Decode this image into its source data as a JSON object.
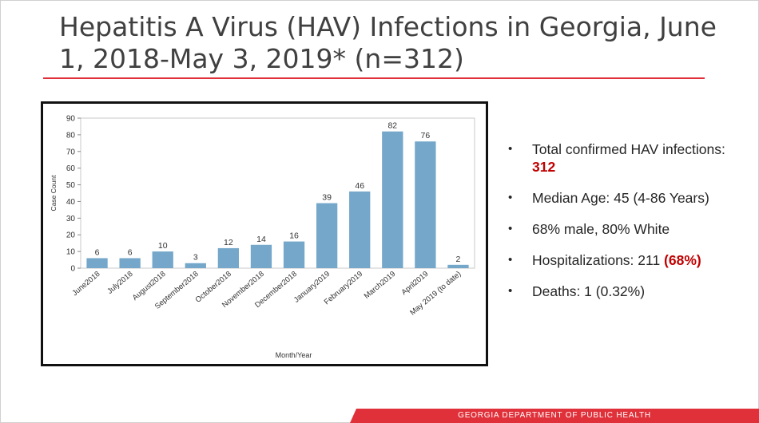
{
  "slide": {
    "title": "Hepatitis A Virus (HAV) Infections in Georgia, June 1, 2018-May 3, 2019* (n=312)",
    "footer": "GEORGIA DEPARTMENT OF PUBLIC HEALTH"
  },
  "bullets": [
    {
      "text": "Total confirmed HAV infections: ",
      "highlight": "312",
      "suffix": ""
    },
    {
      "text": "Median Age: 45 (4-86 Years)",
      "highlight": "",
      "suffix": ""
    },
    {
      "text": "68% male, 80% White",
      "highlight": "",
      "suffix": ""
    },
    {
      "text": "Hospitalizations: 211 ",
      "highlight": "(68%)",
      "suffix": ""
    },
    {
      "text": "Deaths: 1 (0.32%)",
      "highlight": "",
      "suffix": ""
    }
  ],
  "colors": {
    "bar": "#74a7c9",
    "accent": "#e0313a",
    "highlight": "#c00000"
  },
  "chart_data": {
    "type": "bar",
    "categories": [
      "June2018",
      "July2018",
      "August2018",
      "September2018",
      "October2018",
      "November2018",
      "December2018",
      "January2019",
      "February2019",
      "March2019",
      "April2019",
      "May 2019 (to date)"
    ],
    "values": [
      6,
      6,
      10,
      3,
      12,
      14,
      16,
      39,
      46,
      82,
      76,
      2
    ],
    "title": "",
    "xlabel": "Month/Year",
    "ylabel": "Case Count",
    "ylim": [
      0,
      90
    ],
    "yticks": [
      0,
      10,
      20,
      30,
      40,
      50,
      60,
      70,
      80,
      90
    ],
    "data_labels": true,
    "grid": false
  }
}
